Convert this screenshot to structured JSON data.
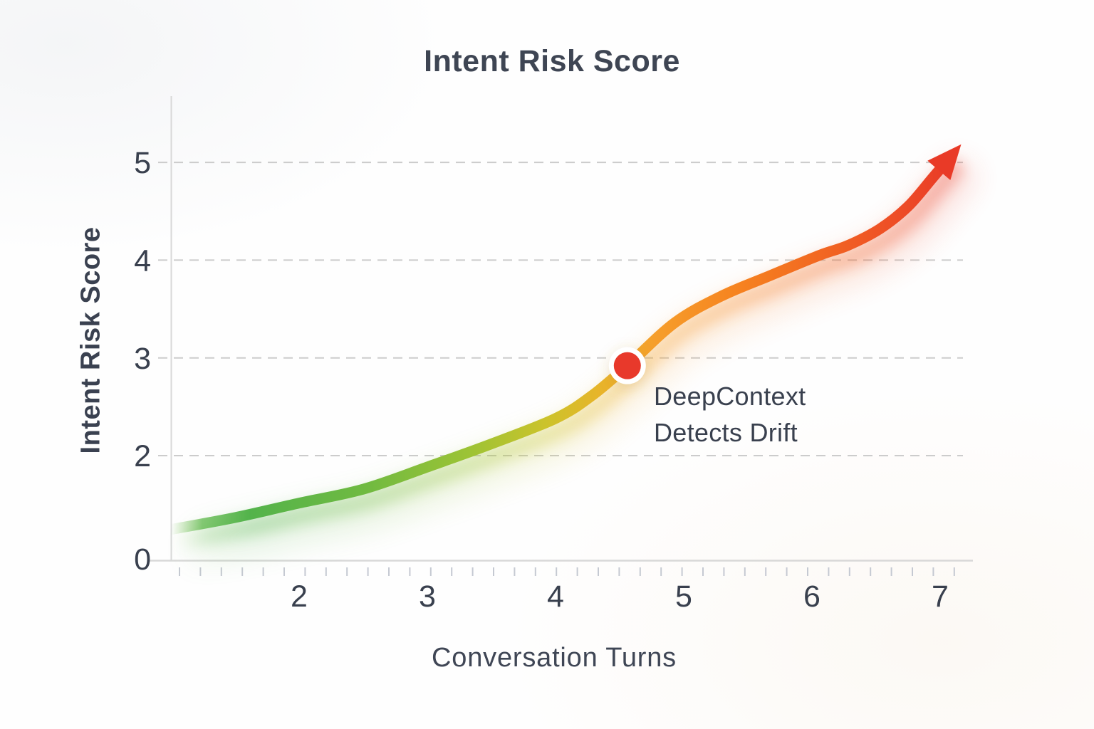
{
  "title": "Intent Risk Score",
  "axes": {
    "y_title": "Intent Risk Score",
    "x_title": "Conversation Turns"
  },
  "annotation": {
    "line1": "DeepContext",
    "line2": "Detects Drift"
  },
  "colors": {
    "text_dark": "#3a4150",
    "grid": "#cccccc",
    "axis": "#d8d8d8",
    "minor_tick": "#c5c9d2",
    "marker_red": "#e8392b",
    "marker_ring": "#ffffff",
    "arrow_red": "#e93a27"
  },
  "chart_data": {
    "type": "line",
    "title": "Intent Risk Score",
    "xlabel": "Conversation Turns",
    "ylabel": "Intent Risk Score",
    "x_ticks": [
      2,
      3,
      4,
      5,
      6,
      7
    ],
    "y_ticks": [
      5,
      4,
      3,
      2,
      0
    ],
    "y_gridlines": [
      2,
      3,
      4,
      5
    ],
    "xlim": [
      1,
      7.2
    ],
    "ylim": [
      0,
      5.5
    ],
    "grid_style": "dashed-horizontal",
    "legend": "none",
    "series": [
      {
        "name": "Intent Risk Score",
        "x": [
          1.0,
          1.5,
          2.0,
          2.5,
          3.0,
          3.5,
          4.0,
          4.28,
          4.56,
          4.93,
          5.29,
          5.67,
          6.06,
          6.28,
          6.53,
          6.75,
          6.94,
          7.07
        ],
        "y": [
          0.57,
          0.8,
          1.08,
          1.35,
          1.78,
          2.12,
          2.38,
          2.61,
          2.92,
          3.36,
          3.63,
          3.84,
          4.05,
          4.15,
          4.32,
          4.55,
          4.84,
          5.04
        ],
        "style": "thick gradient stroke green-yellow-orange-red ending in arrowhead"
      }
    ],
    "marker": {
      "x": 4.56,
      "y": 2.92,
      "label": "DeepContext Detects Drift",
      "color": "#e8392b"
    },
    "gradient": [
      {
        "offset": 0,
        "color": "#79c052",
        "opacity": 0
      },
      {
        "offset": 0.04,
        "color": "#5eb84a",
        "opacity": 0.75
      },
      {
        "offset": 0.1,
        "color": "#53b34b",
        "opacity": 1
      },
      {
        "offset": 0.25,
        "color": "#70ba41",
        "opacity": 1
      },
      {
        "offset": 0.38,
        "color": "#9cc335",
        "opacity": 1
      },
      {
        "offset": 0.48,
        "color": "#ccc32b",
        "opacity": 1
      },
      {
        "offset": 0.55,
        "color": "#e8b42a",
        "opacity": 1
      },
      {
        "offset": 0.62,
        "color": "#f69e2b",
        "opacity": 1
      },
      {
        "offset": 0.72,
        "color": "#f68420",
        "opacity": 1
      },
      {
        "offset": 0.82,
        "color": "#f26a21",
        "opacity": 1
      },
      {
        "offset": 0.92,
        "color": "#ee4f26",
        "opacity": 1
      },
      {
        "offset": 1,
        "color": "#e93a27",
        "opacity": 1
      }
    ]
  }
}
